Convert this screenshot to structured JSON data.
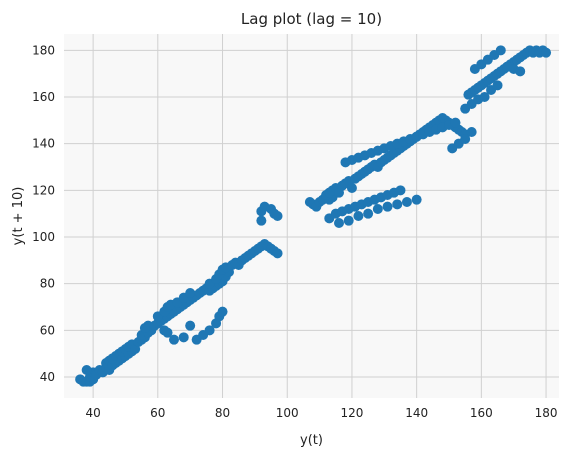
{
  "chart_data": {
    "type": "scatter",
    "title": "Lag plot (lag = 10)",
    "xlabel": "y(t)",
    "ylabel": "y(t + 10)",
    "xlim": [
      31,
      184
    ],
    "ylim": [
      31,
      187
    ],
    "xticks": [
      40,
      60,
      80,
      100,
      120,
      140,
      160,
      180
    ],
    "yticks": [
      40,
      60,
      80,
      100,
      120,
      140,
      160,
      180
    ],
    "grid": true,
    "colors": {
      "point": "#1f77b4",
      "plot_background": "#f8f8f8",
      "grid": "#d0d0d0"
    },
    "points": [
      [
        36,
        39
      ],
      [
        37,
        38
      ],
      [
        38,
        38
      ],
      [
        39,
        38
      ],
      [
        40,
        39
      ],
      [
        39,
        40
      ],
      [
        40,
        42
      ],
      [
        38,
        43
      ],
      [
        41,
        41
      ],
      [
        42,
        43
      ],
      [
        43,
        42
      ],
      [
        44,
        44
      ],
      [
        45,
        43
      ],
      [
        44,
        46
      ],
      [
        45,
        47
      ],
      [
        46,
        45
      ],
      [
        47,
        46
      ],
      [
        48,
        47
      ],
      [
        46,
        48
      ],
      [
        47,
        49
      ],
      [
        48,
        50
      ],
      [
        49,
        48
      ],
      [
        50,
        49
      ],
      [
        49,
        51
      ],
      [
        50,
        52
      ],
      [
        51,
        50
      ],
      [
        52,
        51
      ],
      [
        51,
        53
      ],
      [
        52,
        54
      ],
      [
        53,
        52
      ],
      [
        54,
        55
      ],
      [
        55,
        56
      ],
      [
        56,
        57
      ],
      [
        55,
        58
      ],
      [
        57,
        59
      ],
      [
        58,
        60
      ],
      [
        57,
        62
      ],
      [
        59,
        62
      ],
      [
        60,
        63
      ],
      [
        61,
        64
      ],
      [
        62,
        65
      ],
      [
        60,
        66
      ],
      [
        63,
        66
      ],
      [
        64,
        67
      ],
      [
        62,
        68
      ],
      [
        65,
        68
      ],
      [
        63,
        70
      ],
      [
        66,
        69
      ],
      [
        64,
        71
      ],
      [
        67,
        70
      ],
      [
        68,
        71
      ],
      [
        66,
        72
      ],
      [
        69,
        72
      ],
      [
        70,
        73
      ],
      [
        68,
        74
      ],
      [
        71,
        74
      ],
      [
        72,
        75
      ],
      [
        70,
        76
      ],
      [
        73,
        76
      ],
      [
        74,
        77
      ],
      [
        75,
        78
      ],
      [
        76,
        77
      ],
      [
        77,
        78
      ],
      [
        78,
        79
      ],
      [
        76,
        80
      ],
      [
        79,
        80
      ],
      [
        80,
        81
      ],
      [
        78,
        82
      ],
      [
        81,
        83
      ],
      [
        79,
        84
      ],
      [
        82,
        85
      ],
      [
        80,
        86
      ],
      [
        81,
        87
      ],
      [
        83,
        88
      ],
      [
        84,
        89
      ],
      [
        85,
        88
      ],
      [
        86,
        90
      ],
      [
        87,
        91
      ],
      [
        88,
        92
      ],
      [
        89,
        93
      ],
      [
        90,
        94
      ],
      [
        91,
        95
      ],
      [
        92,
        96
      ],
      [
        93,
        97
      ],
      [
        94,
        96
      ],
      [
        95,
        95
      ],
      [
        96,
        94
      ],
      [
        97,
        93
      ],
      [
        62,
        60
      ],
      [
        63,
        59
      ],
      [
        68,
        57
      ],
      [
        72,
        56
      ],
      [
        74,
        58
      ],
      [
        76,
        60
      ],
      [
        78,
        63
      ],
      [
        79,
        66
      ],
      [
        80,
        68
      ],
      [
        65,
        56
      ],
      [
        70,
        62
      ],
      [
        56,
        61
      ],
      [
        92,
        111
      ],
      [
        93,
        113
      ],
      [
        95,
        112
      ],
      [
        96,
        110
      ],
      [
        97,
        109
      ],
      [
        92,
        107
      ],
      [
        107,
        115
      ],
      [
        108,
        114
      ],
      [
        109,
        113
      ],
      [
        110,
        115
      ],
      [
        111,
        116
      ],
      [
        112,
        117
      ],
      [
        113,
        116
      ],
      [
        114,
        117
      ],
      [
        112,
        118
      ],
      [
        113,
        119
      ],
      [
        114,
        120
      ],
      [
        115,
        121
      ],
      [
        116,
        119
      ],
      [
        117,
        122
      ],
      [
        118,
        123
      ],
      [
        119,
        124
      ],
      [
        120,
        121
      ],
      [
        121,
        125
      ],
      [
        122,
        126
      ],
      [
        123,
        127
      ],
      [
        124,
        128
      ],
      [
        125,
        129
      ],
      [
        126,
        130
      ],
      [
        127,
        131
      ],
      [
        128,
        130
      ],
      [
        129,
        132
      ],
      [
        130,
        133
      ],
      [
        131,
        134
      ],
      [
        132,
        135
      ],
      [
        133,
        136
      ],
      [
        134,
        137
      ],
      [
        135,
        138
      ],
      [
        136,
        139
      ],
      [
        137,
        140
      ],
      [
        138,
        141
      ],
      [
        139,
        142
      ],
      [
        140,
        143
      ],
      [
        141,
        144
      ],
      [
        142,
        145
      ],
      [
        143,
        146
      ],
      [
        144,
        147
      ],
      [
        145,
        148
      ],
      [
        146,
        149
      ],
      [
        147,
        150
      ],
      [
        148,
        151
      ],
      [
        149,
        150
      ],
      [
        150,
        149
      ],
      [
        151,
        148
      ],
      [
        152,
        147
      ],
      [
        153,
        146
      ],
      [
        154,
        145
      ],
      [
        155,
        144
      ],
      [
        113,
        108
      ],
      [
        115,
        110
      ],
      [
        117,
        111
      ],
      [
        119,
        112
      ],
      [
        121,
        113
      ],
      [
        123,
        114
      ],
      [
        125,
        115
      ],
      [
        127,
        116
      ],
      [
        129,
        117
      ],
      [
        131,
        118
      ],
      [
        133,
        119
      ],
      [
        135,
        120
      ],
      [
        118,
        132
      ],
      [
        120,
        133
      ],
      [
        122,
        134
      ],
      [
        124,
        135
      ],
      [
        126,
        136
      ],
      [
        128,
        137
      ],
      [
        130,
        138
      ],
      [
        132,
        139
      ],
      [
        134,
        140
      ],
      [
        136,
        141
      ],
      [
        138,
        142
      ],
      [
        140,
        143
      ],
      [
        142,
        144
      ],
      [
        144,
        145
      ],
      [
        146,
        146
      ],
      [
        148,
        147
      ],
      [
        150,
        148
      ],
      [
        152,
        149
      ],
      [
        116,
        106
      ],
      [
        119,
        107
      ],
      [
        122,
        109
      ],
      [
        125,
        110
      ],
      [
        128,
        112
      ],
      [
        131,
        113
      ],
      [
        134,
        114
      ],
      [
        137,
        115
      ],
      [
        140,
        116
      ],
      [
        156,
        161
      ],
      [
        157,
        162
      ],
      [
        158,
        163
      ],
      [
        159,
        164
      ],
      [
        160,
        165
      ],
      [
        161,
        166
      ],
      [
        162,
        167
      ],
      [
        163,
        168
      ],
      [
        164,
        169
      ],
      [
        165,
        170
      ],
      [
        166,
        171
      ],
      [
        167,
        172
      ],
      [
        168,
        173
      ],
      [
        169,
        174
      ],
      [
        170,
        175
      ],
      [
        171,
        176
      ],
      [
        172,
        177
      ],
      [
        173,
        178
      ],
      [
        174,
        179
      ],
      [
        175,
        180
      ],
      [
        176,
        179
      ],
      [
        177,
        180
      ],
      [
        178,
        179
      ],
      [
        179,
        180
      ],
      [
        180,
        179
      ],
      [
        158,
        172
      ],
      [
        160,
        174
      ],
      [
        162,
        176
      ],
      [
        164,
        178
      ],
      [
        166,
        180
      ],
      [
        168,
        173
      ],
      [
        170,
        172
      ],
      [
        172,
        171
      ],
      [
        155,
        155
      ],
      [
        157,
        157
      ],
      [
        159,
        159
      ],
      [
        161,
        160
      ],
      [
        163,
        163
      ],
      [
        165,
        165
      ],
      [
        151,
        138
      ],
      [
        153,
        140
      ],
      [
        155,
        142
      ],
      [
        157,
        145
      ]
    ]
  }
}
